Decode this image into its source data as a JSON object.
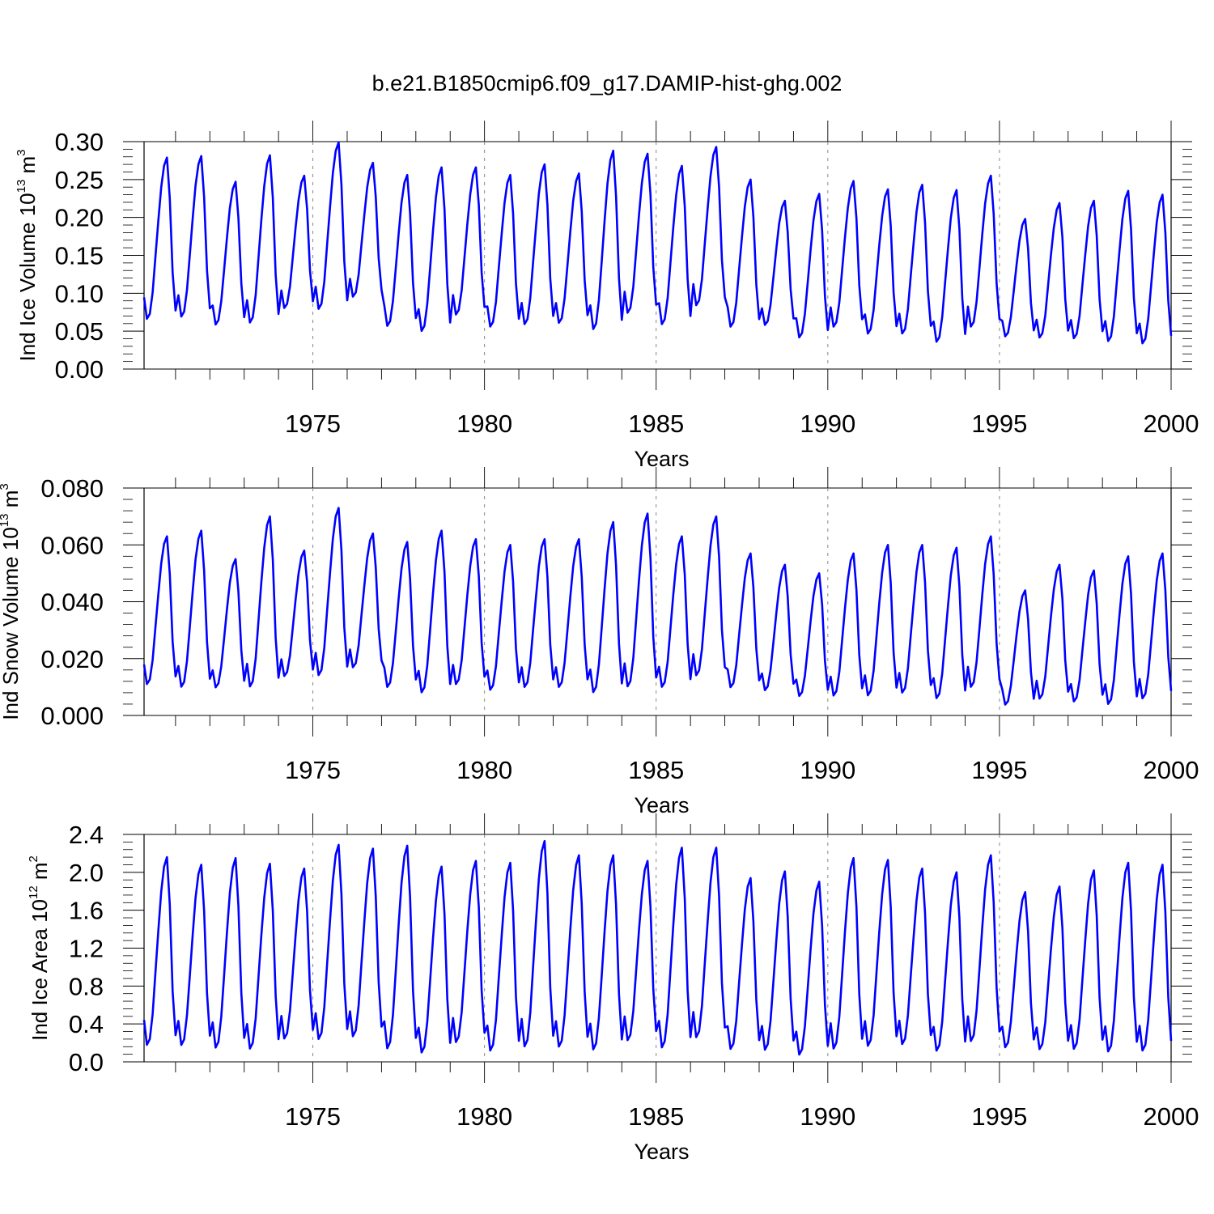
{
  "title": "b.e21.B1850cmip6.f09_g17.DAMIP-hist-ghg.002",
  "colors": {
    "line": "#0000ff",
    "axes": "#000000",
    "grid": "#888888"
  },
  "chart_data": [
    {
      "type": "line",
      "title": "",
      "xlabel": "Years",
      "ylabel": "Ind Ice Volume 10^13 m^3",
      "ylabel_parts": {
        "main": "Ind Ice Volume 10",
        "exp": "13",
        "unit": " m",
        "unit_exp": "3"
      },
      "xlim": [
        1970.0833,
        2000.0
      ],
      "ylim": [
        0.0,
        0.3
      ],
      "x_ticks": [
        1975,
        1980,
        1985,
        1990,
        1995,
        2000
      ],
      "x_tick_labels": [
        "1975",
        "1980",
        "1985",
        "1990",
        "1995",
        "2000"
      ],
      "y_ticks": [
        0.0,
        0.05,
        0.1,
        0.15,
        0.2,
        0.25,
        0.3
      ],
      "y_tick_labels": [
        "0.00",
        "0.05",
        "0.10",
        "0.15",
        "0.20",
        "0.25",
        "0.30"
      ],
      "grid": "vertical dashed at major x ticks",
      "series": [
        {
          "name": "Ind Ice Volume",
          "x_start": 1970.0833,
          "x_step": 0.0833333,
          "annual_min": [
            0.062,
            0.065,
            0.055,
            0.057,
            0.077,
            0.075,
            0.092,
            0.053,
            0.046,
            0.068,
            0.052,
            0.055,
            0.057,
            0.048,
            0.07,
            0.055,
            0.08,
            0.052,
            0.055,
            0.038,
            0.052,
            0.043,
            0.043,
            0.032,
            0.052,
            0.04,
            0.038,
            0.037,
            0.033,
            0.03
          ],
          "annual_max": [
            0.279,
            0.281,
            0.247,
            0.282,
            0.255,
            0.299,
            0.272,
            0.256,
            0.266,
            0.266,
            0.256,
            0.27,
            0.258,
            0.288,
            0.284,
            0.268,
            0.293,
            0.25,
            0.222,
            0.231,
            0.248,
            0.237,
            0.243,
            0.236,
            0.255,
            0.198,
            0.219,
            0.222,
            0.235,
            0.23
          ]
        }
      ]
    },
    {
      "type": "line",
      "title": "",
      "xlabel": "Years",
      "ylabel": "Ind Snow Volume 10^13 m^3",
      "ylabel_parts": {
        "main": "Ind Snow Volume 10",
        "exp": "13",
        "unit": " m",
        "unit_exp": "3"
      },
      "xlim": [
        1970.0833,
        2000.0
      ],
      "ylim": [
        0.0,
        0.08
      ],
      "x_ticks": [
        1975,
        1980,
        1985,
        1990,
        1995,
        2000
      ],
      "x_tick_labels": [
        "1975",
        "1980",
        "1985",
        "1990",
        "1995",
        "2000"
      ],
      "y_ticks": [
        0.0,
        0.02,
        0.04,
        0.06,
        0.08
      ],
      "y_tick_labels": [
        "0.000",
        "0.020",
        "0.040",
        "0.060",
        "0.080"
      ],
      "grid": "vertical dashed at major x ticks",
      "series": [
        {
          "name": "Ind Snow Volume",
          "x_start": 1970.0833,
          "x_step": 0.0833333,
          "annual_min": [
            0.01,
            0.009,
            0.009,
            0.009,
            0.013,
            0.013,
            0.016,
            0.009,
            0.007,
            0.01,
            0.008,
            0.009,
            0.009,
            0.007,
            0.009,
            0.009,
            0.013,
            0.009,
            0.008,
            0.006,
            0.006,
            0.006,
            0.007,
            0.005,
            0.009,
            0.003,
            0.005,
            0.004,
            0.003,
            0.005
          ],
          "annual_max": [
            0.063,
            0.065,
            0.055,
            0.07,
            0.058,
            0.073,
            0.064,
            0.061,
            0.065,
            0.062,
            0.06,
            0.062,
            0.062,
            0.068,
            0.071,
            0.063,
            0.07,
            0.057,
            0.053,
            0.05,
            0.057,
            0.06,
            0.06,
            0.059,
            0.063,
            0.044,
            0.053,
            0.051,
            0.056,
            0.057
          ]
        }
      ]
    },
    {
      "type": "line",
      "title": "",
      "xlabel": "Years",
      "ylabel": "Ind Ice Area 10^12 m^2",
      "ylabel_parts": {
        "main": "Ind Ice Area 10",
        "exp": "12",
        "unit": " m",
        "unit_exp": "2"
      },
      "xlim": [
        1970.0833,
        2000.0
      ],
      "ylim": [
        0.0,
        2.4
      ],
      "x_ticks": [
        1975,
        1980,
        1985,
        1990,
        1995,
        2000
      ],
      "x_tick_labels": [
        "1975",
        "1980",
        "1985",
        "1990",
        "1995",
        "2000"
      ],
      "y_ticks": [
        0.0,
        0.4,
        0.8,
        1.2,
        1.6,
        2.0,
        2.4
      ],
      "y_tick_labels": [
        "0.0",
        "0.4",
        "0.8",
        "1.2",
        "1.6",
        "2.0",
        "2.4"
      ],
      "grid": "vertical dashed at major x ticks",
      "series": [
        {
          "name": "Ind Ice Area",
          "x_start": 1970.0833,
          "x_step": 0.0833333,
          "annual_min": [
            0.14,
            0.14,
            0.11,
            0.1,
            0.21,
            0.2,
            0.23,
            0.1,
            0.06,
            0.17,
            0.08,
            0.12,
            0.12,
            0.09,
            0.19,
            0.11,
            0.22,
            0.1,
            0.09,
            0.04,
            0.1,
            0.13,
            0.15,
            0.08,
            0.18,
            0.12,
            0.1,
            0.1,
            0.07,
            0.08
          ],
          "annual_max": [
            2.16,
            2.08,
            2.15,
            2.09,
            2.04,
            2.29,
            2.25,
            2.28,
            2.06,
            2.12,
            2.1,
            2.33,
            2.18,
            2.18,
            2.12,
            2.26,
            2.26,
            1.94,
            2.01,
            1.9,
            2.15,
            2.13,
            2.04,
            2.0,
            2.18,
            1.79,
            1.85,
            2.02,
            2.1,
            2.08
          ]
        }
      ]
    }
  ]
}
